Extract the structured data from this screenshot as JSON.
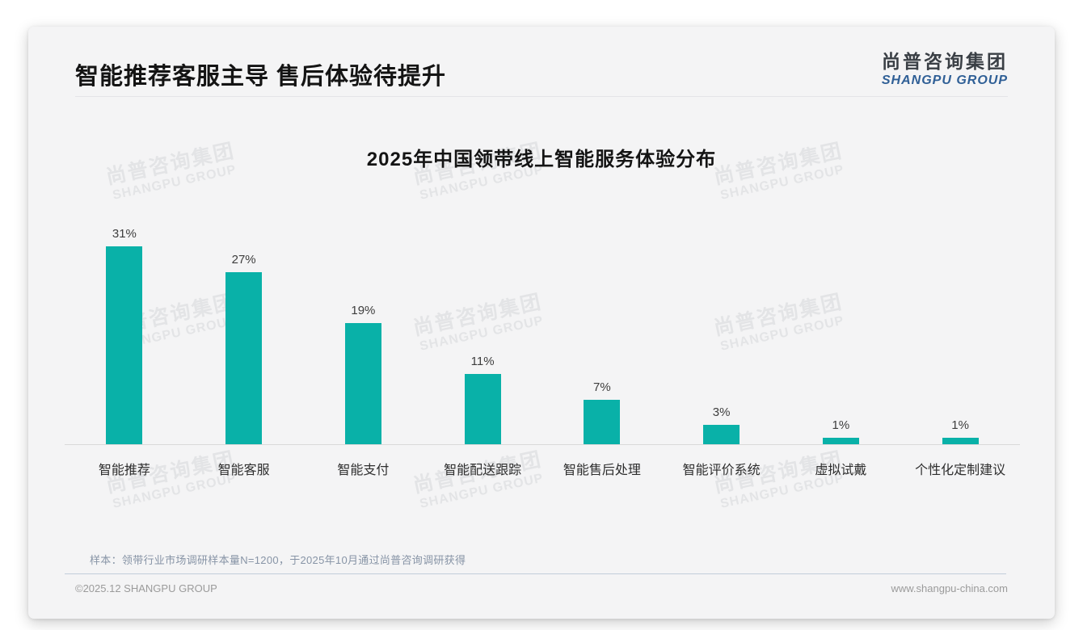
{
  "page": {
    "title": "智能推荐客服主导 售后体验待提升",
    "logo": {
      "cn": "尚普咨询集团",
      "en": "SHANGPU GROUP"
    },
    "note": "样本：领带行业市场调研样本量N=1200，于2025年10月通过尚普咨询调研获得",
    "footer": {
      "left": "©2025.12 SHANGPU GROUP",
      "right": "www.shangpu-china.com"
    },
    "watermark": {
      "line1": "尚普咨询集团",
      "line2": "SHANGPU GROUP"
    }
  },
  "colors": {
    "accent_teal": "#09b1a8",
    "logo_blue": "#2f5f96",
    "card_background": "#f4f4f5"
  },
  "chart_data": {
    "type": "bar",
    "title": "2025年中国领带线上智能服务体验分布",
    "categories": [
      "智能推荐",
      "智能客服",
      "智能支付",
      "智能配送跟踪",
      "智能售后处理",
      "智能评价系统",
      "虚拟试戴",
      "个性化定制建议"
    ],
    "values": [
      31,
      27,
      19,
      11,
      7,
      3,
      1,
      1
    ],
    "value_labels": [
      "31%",
      "27%",
      "19%",
      "11%",
      "7%",
      "3%",
      "1%",
      "1%"
    ],
    "unit": "%",
    "bar_color": "#09b1a8",
    "xlabel": "",
    "ylabel": "",
    "ylim": [
      0,
      35
    ],
    "grid": false,
    "legend": false,
    "value_labels_position": "above-bars"
  }
}
